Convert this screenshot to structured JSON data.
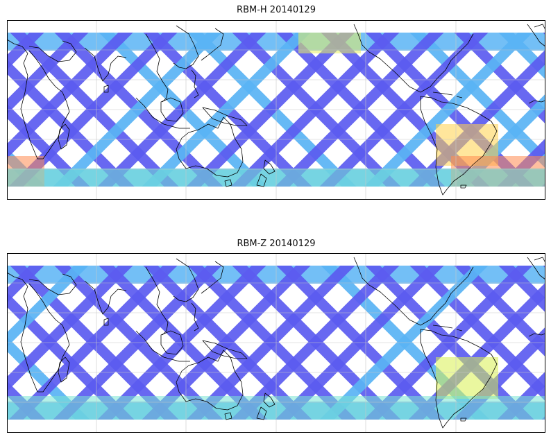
{
  "figure": {
    "panels": [
      {
        "id": "top",
        "title": "RBM-H 20140129",
        "base_color": "#5c5cf0",
        "swath_color_mid": "#5ab4f5",
        "hotspots": [
          {
            "region": "southern-ocean-west",
            "color": "#ff8a50"
          },
          {
            "region": "south-america-east",
            "color": "#ffd24a"
          },
          {
            "region": "south-atlantic",
            "color": "#ff8a50"
          },
          {
            "region": "north-pacific",
            "color": "#e8f060"
          },
          {
            "region": "high-latitude-band",
            "color": "#78e6d2"
          }
        ]
      },
      {
        "id": "bottom",
        "title": "RBM-Z 20140129",
        "base_color": "#5c5cf0",
        "swath_color_mid": "#5ab4f5",
        "hotspots": [
          {
            "region": "south-america-east",
            "color": "#d8f050"
          },
          {
            "region": "southern-ocean",
            "color": "#78e6d2"
          }
        ]
      }
    ]
  }
}
